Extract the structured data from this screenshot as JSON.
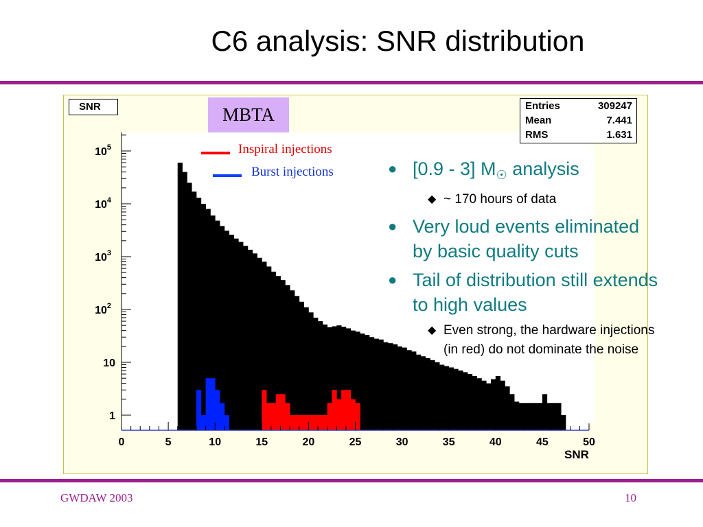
{
  "slide": {
    "title": "C6 analysis: SNR distribution",
    "footer_left": "GWDAW 2003",
    "page_number": "10"
  },
  "histogram_title": "SNR",
  "mbta_label": "MBTA",
  "stats": {
    "entries_label": "Entries",
    "entries_value": "309247",
    "mean_label": "Mean",
    "mean_value": "7.441",
    "rms_label": "RMS",
    "rms_value": "1.631"
  },
  "legend": {
    "inspiral": "Inspiral injections",
    "burst": "Burst injections"
  },
  "bullets": {
    "item1_prefix": "[0.9 - 3] M",
    "item1_symbol": "☉",
    "item1_suffix": " analysis",
    "item1_sub": "~ 170 hours of data",
    "item2": "Very loud events eliminated by basic quality cuts",
    "item3": "Tail of distribution still extends to high values",
    "item3_sub": "Even strong, the hardware injections (in red) do not dominate the noise"
  },
  "colors": {
    "accent": "#9b1f8f",
    "text_teal": "#107b80",
    "inspiral": "#ff0000",
    "burst": "#0022ff",
    "background_hist": "#000000"
  },
  "chart_data": {
    "type": "bar",
    "title": "SNR",
    "xlabel": "SNR",
    "ylabel": "",
    "xlim": [
      0,
      50
    ],
    "ylim": [
      0.6,
      200000
    ],
    "yscale": "log",
    "bin_width": 0.5,
    "x_ticks": [
      "0",
      "5",
      "10",
      "15",
      "20",
      "25",
      "30",
      "35",
      "40",
      "45",
      "50"
    ],
    "y_ticks": [
      {
        "base": "10",
        "exp": "5",
        "value": 100000
      },
      {
        "base": "10",
        "exp": "4",
        "value": 10000
      },
      {
        "base": "10",
        "exp": "3",
        "value": 1000
      },
      {
        "base": "10",
        "exp": "2",
        "value": 100
      },
      {
        "base": "10",
        "exp": "",
        "value": 10
      },
      {
        "base": "1",
        "exp": "",
        "value": 1
      }
    ],
    "series": [
      {
        "name": "",
        "x_start": 6.0,
        "values": [
          60000,
          40000,
          25000,
          17000,
          13000,
          10000,
          8000,
          6000,
          4800,
          3800,
          3100,
          2600,
          2200,
          1900,
          1600,
          1350,
          1150,
          950,
          800,
          650,
          520,
          430,
          360,
          290,
          230,
          180,
          140,
          110,
          88,
          70,
          60,
          52,
          46,
          48,
          50,
          47,
          44,
          40,
          38,
          35,
          33,
          30,
          28,
          27,
          24,
          23,
          22,
          20,
          19,
          17,
          16,
          14,
          13,
          12,
          11,
          10,
          9,
          8.5,
          8,
          7.5,
          7,
          6.5,
          6,
          5.5,
          5,
          4.5,
          4,
          4.8,
          5.5,
          4.5,
          3.5,
          2.5,
          1.8,
          1.7,
          1.7,
          1.7,
          1.7,
          1.7,
          2.5,
          1.7,
          1.7,
          1.7,
          1
        ]
      },
      {
        "name": "Inspiral injections",
        "x_start": 15.0,
        "values": [
          3,
          1.7,
          1.7,
          2.5,
          2.5,
          1.7,
          1,
          1,
          1,
          1,
          1,
          1,
          1,
          1,
          1.7,
          3,
          2,
          3,
          3,
          2,
          1.7
        ]
      },
      {
        "name": "Burst injections",
        "x_start": 8.0,
        "values": [
          3,
          1,
          5,
          5,
          3,
          1.7,
          1
        ]
      }
    ]
  }
}
